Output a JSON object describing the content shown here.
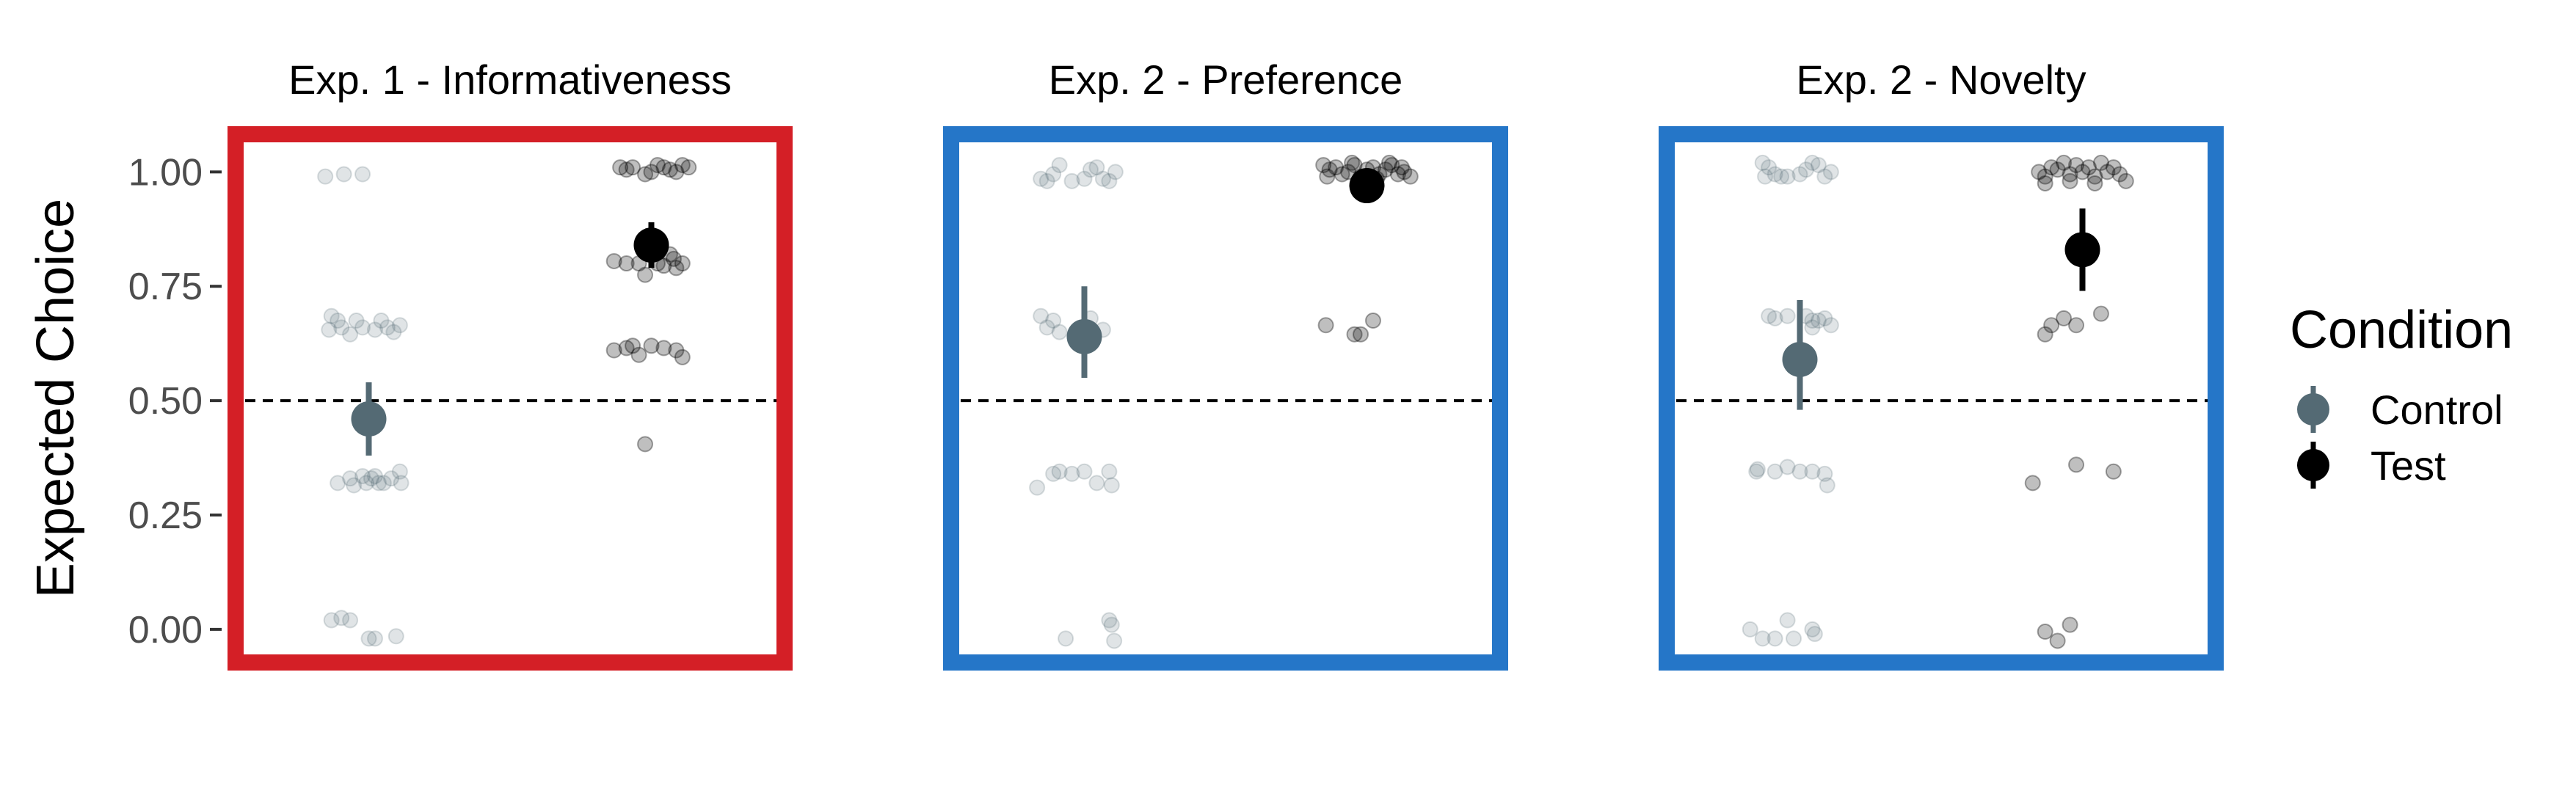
{
  "chart_data": {
    "type": "scatter",
    "ylabel": "Expected Choice",
    "ylim": [
      -0.09,
      1.1
    ],
    "yticks": [
      0.0,
      0.25,
      0.5,
      0.75,
      1.0
    ],
    "ytick_labels": [
      "0.00",
      "0.25",
      "0.50",
      "0.75",
      "1.00"
    ],
    "reference_line": 0.5,
    "legend": {
      "title": "Condition",
      "position": "right",
      "entries": [
        {
          "name": "Control",
          "color": "#546a74"
        },
        {
          "name": "Test",
          "color": "#000000"
        }
      ]
    },
    "categories": [
      "Control",
      "Test"
    ],
    "panels": [
      {
        "title": "Exp. 1 - Informativeness",
        "border_color": "#d41f26",
        "series": [
          {
            "name": "Control",
            "summary": {
              "mean": 0.46,
              "lower": 0.38,
              "upper": 0.54
            },
            "points": [
              [
                -0.35,
                0.99
              ],
              [
                -0.2,
                0.995
              ],
              [
                -0.05,
                0.995
              ],
              [
                -0.3,
                0.685
              ],
              [
                -0.25,
                0.675
              ],
              [
                -0.32,
                0.655
              ],
              [
                -0.22,
                0.66
              ],
              [
                -0.1,
                0.675
              ],
              [
                -0.05,
                0.66
              ],
              [
                -0.15,
                0.645
              ],
              [
                0.1,
                0.675
              ],
              [
                0.15,
                0.66
              ],
              [
                0.2,
                0.65
              ],
              [
                0.25,
                0.665
              ],
              [
                0.05,
                0.655
              ],
              [
                -0.15,
                0.33
              ],
              [
                -0.12,
                0.315
              ],
              [
                -0.05,
                0.335
              ],
              [
                -0.02,
                0.32
              ],
              [
                0.02,
                0.33
              ],
              [
                0.05,
                0.335
              ],
              [
                0.08,
                0.32
              ],
              [
                0.12,
                0.32
              ],
              [
                0.18,
                0.33
              ],
              [
                0.25,
                0.345
              ],
              [
                0.26,
                0.32
              ],
              [
                -0.25,
                0.32
              ],
              [
                -0.3,
                0.02
              ],
              [
                -0.22,
                0.025
              ],
              [
                -0.15,
                0.02
              ],
              [
                0.0,
                -0.02
              ],
              [
                0.05,
                -0.02
              ],
              [
                0.22,
                -0.015
              ]
            ]
          },
          {
            "name": "Test",
            "summary": {
              "mean": 0.84,
              "lower": 0.79,
              "upper": 0.89
            },
            "points": [
              [
                -0.25,
                1.01
              ],
              [
                -0.2,
                1.005
              ],
              [
                -0.15,
                1.01
              ],
              [
                -0.05,
                0.995
              ],
              [
                0.0,
                1.0
              ],
              [
                0.05,
                1.015
              ],
              [
                0.1,
                1.01
              ],
              [
                0.15,
                1.005
              ],
              [
                0.2,
                1.0
              ],
              [
                0.25,
                1.015
              ],
              [
                0.3,
                1.01
              ],
              [
                -0.3,
                0.805
              ],
              [
                -0.2,
                0.8
              ],
              [
                -0.1,
                0.8
              ],
              [
                -0.05,
                0.775
              ],
              [
                0.05,
                0.8
              ],
              [
                0.1,
                0.795
              ],
              [
                0.15,
                0.82
              ],
              [
                0.18,
                0.81
              ],
              [
                0.2,
                0.79
              ],
              [
                0.25,
                0.8
              ],
              [
                -0.3,
                0.61
              ],
              [
                -0.2,
                0.615
              ],
              [
                -0.15,
                0.62
              ],
              [
                -0.1,
                0.6
              ],
              [
                0.0,
                0.62
              ],
              [
                0.1,
                0.615
              ],
              [
                0.2,
                0.61
              ],
              [
                0.25,
                0.595
              ],
              [
                -0.05,
                0.405
              ]
            ]
          }
        ]
      },
      {
        "title": "Exp. 2 - Preference",
        "border_color": "#2576c8",
        "series": [
          {
            "name": "Control",
            "summary": {
              "mean": 0.64,
              "lower": 0.55,
              "upper": 0.75
            },
            "points": [
              [
                -0.35,
                0.985
              ],
              [
                -0.3,
                0.98
              ],
              [
                -0.25,
                0.995
              ],
              [
                -0.2,
                1.015
              ],
              [
                -0.1,
                0.98
              ],
              [
                0.0,
                0.985
              ],
              [
                0.05,
                1.005
              ],
              [
                0.1,
                1.01
              ],
              [
                0.15,
                0.985
              ],
              [
                0.2,
                0.98
              ],
              [
                0.25,
                1.0
              ],
              [
                -0.35,
                0.685
              ],
              [
                -0.3,
                0.66
              ],
              [
                -0.25,
                0.675
              ],
              [
                -0.2,
                0.65
              ],
              [
                0.05,
                0.68
              ],
              [
                0.15,
                0.655
              ],
              [
                -0.38,
                0.31
              ],
              [
                -0.25,
                0.34
              ],
              [
                -0.2,
                0.345
              ],
              [
                -0.1,
                0.34
              ],
              [
                0.0,
                0.345
              ],
              [
                0.1,
                0.32
              ],
              [
                0.2,
                0.345
              ],
              [
                0.22,
                0.315
              ],
              [
                -0.15,
                -0.02
              ],
              [
                0.2,
                0.02
              ],
              [
                0.22,
                0.01
              ],
              [
                0.24,
                -0.025
              ]
            ]
          },
          {
            "name": "Test",
            "summary": {
              "mean": 0.97,
              "lower": 0.95,
              "upper": 0.99
            },
            "points": [
              [
                -0.35,
                1.015
              ],
              [
                -0.3,
                1.005
              ],
              [
                -0.25,
                1.01
              ],
              [
                -0.2,
                0.995
              ],
              [
                -0.15,
                1.0
              ],
              [
                -0.1,
                1.015
              ],
              [
                -0.05,
                0.99
              ],
              [
                0.0,
                1.005
              ],
              [
                0.05,
                1.01
              ],
              [
                0.1,
                0.995
              ],
              [
                0.15,
                1.005
              ],
              [
                0.2,
                1.015
              ],
              [
                0.25,
                0.995
              ],
              [
                0.3,
                1.0
              ],
              [
                0.35,
                0.99
              ],
              [
                -0.32,
                0.99
              ],
              [
                -0.12,
                1.02
              ],
              [
                0.08,
                0.985
              ],
              [
                0.18,
                1.02
              ],
              [
                0.28,
                1.01
              ],
              [
                -0.33,
                0.665
              ],
              [
                -0.1,
                0.645
              ],
              [
                -0.05,
                0.645
              ],
              [
                0.05,
                0.675
              ]
            ]
          }
        ]
      },
      {
        "title": "Exp. 2 - Novelty",
        "border_color": "#2576c8",
        "series": [
          {
            "name": "Control",
            "summary": {
              "mean": 0.59,
              "lower": 0.48,
              "upper": 0.72
            },
            "points": [
              [
                -0.3,
                1.02
              ],
              [
                -0.25,
                1.01
              ],
              [
                -0.2,
                0.995
              ],
              [
                -0.15,
                0.99
              ],
              [
                -0.1,
                0.99
              ],
              [
                0.0,
                0.995
              ],
              [
                0.05,
                1.005
              ],
              [
                0.1,
                1.02
              ],
              [
                0.15,
                1.015
              ],
              [
                0.2,
                0.99
              ],
              [
                0.25,
                1.0
              ],
              [
                -0.28,
                0.99
              ],
              [
                -0.25,
                0.685
              ],
              [
                -0.2,
                0.68
              ],
              [
                -0.1,
                0.685
              ],
              [
                0.05,
                0.685
              ],
              [
                0.1,
                0.675
              ],
              [
                0.15,
                0.675
              ],
              [
                0.2,
                0.68
              ],
              [
                0.25,
                0.665
              ],
              [
                0.1,
                0.66
              ],
              [
                -0.35,
                0.345
              ],
              [
                -0.34,
                0.35
              ],
              [
                -0.2,
                0.345
              ],
              [
                -0.1,
                0.355
              ],
              [
                0.0,
                0.345
              ],
              [
                0.1,
                0.345
              ],
              [
                0.2,
                0.34
              ],
              [
                0.22,
                0.315
              ],
              [
                -0.4,
                0.0
              ],
              [
                -0.3,
                -0.02
              ],
              [
                -0.2,
                -0.02
              ],
              [
                -0.1,
                0.02
              ],
              [
                -0.05,
                -0.02
              ],
              [
                0.1,
                0.0
              ],
              [
                0.12,
                -0.01
              ]
            ]
          },
          {
            "name": "Test",
            "summary": {
              "mean": 0.83,
              "lower": 0.74,
              "upper": 0.92
            },
            "points": [
              [
                -0.35,
                1.0
              ],
              [
                -0.3,
                0.99
              ],
              [
                -0.25,
                1.01
              ],
              [
                -0.2,
                1.005
              ],
              [
                -0.15,
                1.02
              ],
              [
                -0.1,
                0.995
              ],
              [
                -0.05,
                1.015
              ],
              [
                0.0,
                1.0
              ],
              [
                0.05,
                1.01
              ],
              [
                0.1,
                0.99
              ],
              [
                0.15,
                1.02
              ],
              [
                0.2,
                1.0
              ],
              [
                0.25,
                1.01
              ],
              [
                0.3,
                0.995
              ],
              [
                0.35,
                0.98
              ],
              [
                -0.3,
                0.975
              ],
              [
                -0.1,
                0.98
              ],
              [
                0.1,
                0.975
              ],
              [
                -0.3,
                0.645
              ],
              [
                -0.25,
                0.665
              ],
              [
                -0.15,
                0.68
              ],
              [
                -0.05,
                0.665
              ],
              [
                0.15,
                0.69
              ],
              [
                -0.4,
                0.32
              ],
              [
                -0.05,
                0.36
              ],
              [
                0.25,
                0.345
              ],
              [
                -0.3,
                -0.005
              ],
              [
                -0.2,
                -0.025
              ],
              [
                -0.1,
                0.01
              ]
            ]
          }
        ]
      }
    ]
  }
}
